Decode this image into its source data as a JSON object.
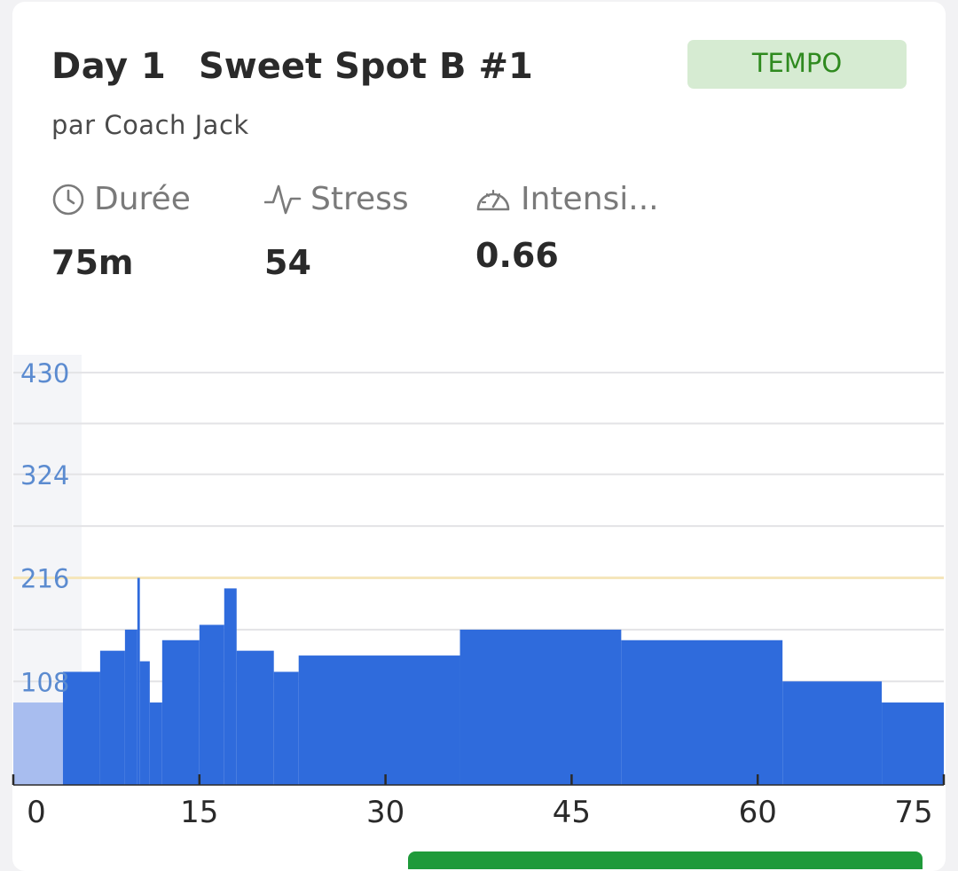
{
  "workout": {
    "day": "Day 1",
    "title": "Sweet Spot B #1",
    "badge": "TEMPO",
    "author": "par Coach Jack"
  },
  "stats": {
    "duration": {
      "label": "Durée",
      "value": "75m",
      "icon": "clock-icon"
    },
    "stress": {
      "label": "Stress",
      "value": "54",
      "icon": "pulse-icon"
    },
    "intensity": {
      "label": "Intensi...",
      "value": "0.66",
      "icon": "speedometer-icon"
    }
  },
  "colors": {
    "accent": "#2f6bdc",
    "warmup": "#a8bdef",
    "ftp_line": "#f5e6bb",
    "tick_label": "#5b8bd0",
    "badge_bg": "#d6ebd2",
    "badge_text": "#2f8a1f"
  },
  "chart_data": {
    "type": "area",
    "xlabel": "",
    "ylabel": "",
    "xlim": [
      0,
      75
    ],
    "ylim": [
      0,
      432
    ],
    "grid": true,
    "x_ticks": [
      0,
      15,
      30,
      45,
      60,
      75
    ],
    "y_ticks": [
      108,
      216,
      324,
      430
    ],
    "reference_line": 216,
    "segments": [
      {
        "start": 0,
        "end": 4,
        "power": 86
      },
      {
        "start": 4,
        "end": 7,
        "power": 118
      },
      {
        "start": 7,
        "end": 9,
        "power": 140
      },
      {
        "start": 9,
        "end": 10,
        "power": 162
      },
      {
        "start": 10,
        "end": 10.2,
        "power": 216
      },
      {
        "start": 10.2,
        "end": 11,
        "power": 129
      },
      {
        "start": 11,
        "end": 12,
        "power": 86
      },
      {
        "start": 12,
        "end": 15,
        "power": 151
      },
      {
        "start": 15,
        "end": 17,
        "power": 167
      },
      {
        "start": 17,
        "end": 18,
        "power": 205
      },
      {
        "start": 18,
        "end": 21,
        "power": 140
      },
      {
        "start": 21,
        "end": 23,
        "power": 118
      },
      {
        "start": 23,
        "end": 36,
        "power": 135
      },
      {
        "start": 36,
        "end": 49,
        "power": 162
      },
      {
        "start": 49,
        "end": 62,
        "power": 151
      },
      {
        "start": 62,
        "end": 70,
        "power": 108
      },
      {
        "start": 70,
        "end": 75,
        "power": 86
      }
    ]
  }
}
